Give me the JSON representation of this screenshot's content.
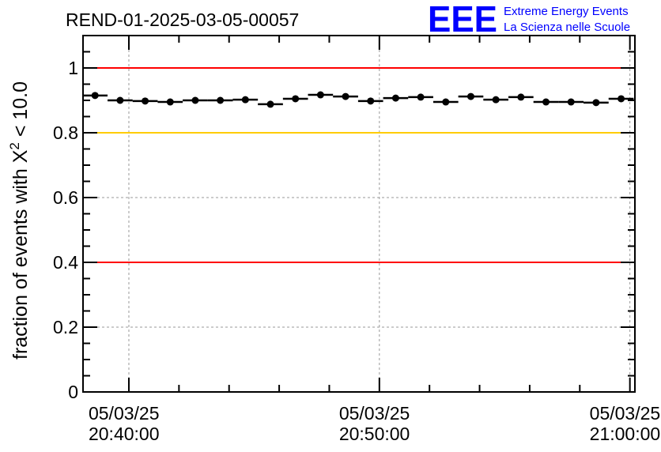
{
  "chart_data": {
    "type": "scatter",
    "title": "REND-01-2025-03-05-00057",
    "ylabel": "fraction of events with X² < 10.0",
    "ylabel_main": "fraction of events with X",
    "ylabel_sup": "2",
    "ylabel_tail": " < 10.0",
    "xlabel": "",
    "x_unit": "minutes after 05/03/25 20:40:00",
    "xlim": [
      -1.83,
      20.2
    ],
    "ylim": [
      0,
      1.1
    ],
    "grid": true,
    "yticks": [
      "0",
      "0.2",
      "0.4",
      "0.6",
      "0.8",
      "1"
    ],
    "xticks": [
      {
        "value": 0,
        "date": "05/03/25",
        "time": "20:40:00"
      },
      {
        "value": 10,
        "date": "05/03/25",
        "time": "20:50:00"
      },
      {
        "value": 20,
        "date": "05/03/25",
        "time": "21:00:00"
      }
    ],
    "bin_width": 1,
    "x": [
      -1.35,
      -0.35,
      0.65,
      1.65,
      2.65,
      3.65,
      4.65,
      5.65,
      6.65,
      7.65,
      8.65,
      9.65,
      10.65,
      11.65,
      12.65,
      13.65,
      14.65,
      15.65,
      16.65,
      17.65,
      18.65,
      19.65
    ],
    "values": [
      0.915,
      0.9,
      0.898,
      0.895,
      0.9,
      0.9,
      0.902,
      0.888,
      0.905,
      0.917,
      0.912,
      0.898,
      0.907,
      0.91,
      0.895,
      0.912,
      0.902,
      0.91,
      0.895,
      0.895,
      0.893,
      0.905
    ],
    "reference_lines": [
      {
        "y": 1.0,
        "color": "#ff0000"
      },
      {
        "y": 0.8,
        "color": "#ffcc00"
      },
      {
        "y": 0.4,
        "color": "#ff0000"
      }
    ]
  },
  "logo": {
    "letters": "EEE",
    "line1": "Extreme Energy Events",
    "line2": "La Scienza nelle Scuole",
    "color": "#0000ff"
  }
}
